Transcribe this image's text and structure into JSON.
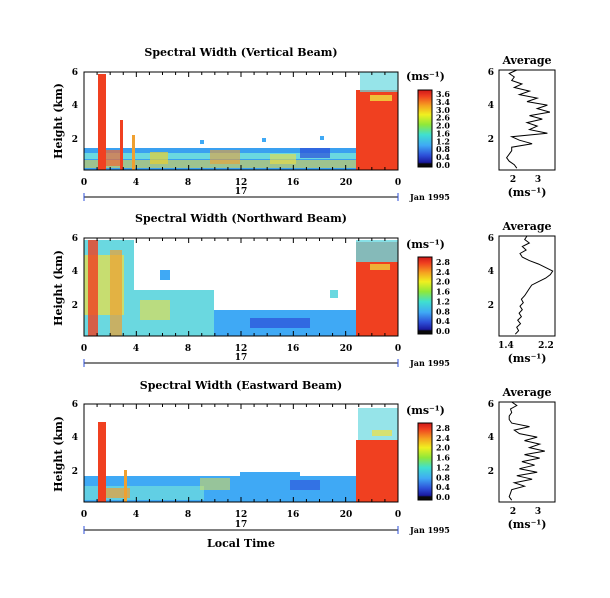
{
  "chart_data": [
    {
      "type": "heatmap",
      "title": "Spectral Width (Vertical Beam)",
      "ylabel": "Height (km)",
      "xlabel": "",
      "x_ticks": [
        "0",
        "4",
        "8",
        "12",
        "16",
        "20",
        "0"
      ],
      "y_ticks": [
        "2",
        "4",
        "6"
      ],
      "xlim": [
        0,
        24
      ],
      "ylim": [
        0.3,
        6
      ],
      "day_label": "17",
      "date_label": "Jan 1995",
      "colorbar": {
        "unit": "(ms⁻¹)",
        "ticks": [
          "3.6",
          "3.4",
          "3.0",
          "2.6",
          "2.0",
          "1.6",
          "1.2",
          "0.8",
          "0.4",
          "0.0"
        ]
      },
      "profile": {
        "title": "Average",
        "xlabel": "(ms⁻¹)",
        "x_ticks": [
          "2",
          "3"
        ],
        "y_ticks": [
          "2",
          "4",
          "6"
        ],
        "xlim": [
          1.4,
          3.6
        ],
        "heights": [
          0.4,
          0.6,
          0.8,
          1.0,
          1.2,
          1.4,
          1.6,
          1.8,
          2.0,
          2.2,
          2.4,
          2.6,
          2.8,
          3.0,
          3.2,
          3.4,
          3.6,
          3.8,
          4.0,
          4.2,
          4.4,
          4.6,
          4.8,
          5.0,
          5.2,
          5.4,
          5.6,
          5.8,
          6.0
        ],
        "values": [
          2.1,
          2.0,
          1.8,
          1.7,
          1.8,
          1.9,
          1.9,
          2.7,
          2.2,
          1.9,
          3.3,
          2.6,
          2.9,
          2.5,
          3.1,
          2.6,
          3.4,
          2.9,
          3.3,
          2.5,
          2.9,
          2.2,
          2.6,
          2.0,
          2.3,
          1.9,
          2.0,
          1.8,
          2.1
        ]
      }
    },
    {
      "type": "heatmap",
      "title": "Spectral Width (Northward Beam)",
      "ylabel": "Height (km)",
      "xlabel": "",
      "x_ticks": [
        "0",
        "4",
        "8",
        "12",
        "16",
        "20",
        "0"
      ],
      "y_ticks": [
        "2",
        "4",
        "6"
      ],
      "xlim": [
        0,
        24
      ],
      "ylim": [
        0.3,
        6
      ],
      "day_label": "17",
      "date_label": "Jan 1995",
      "colorbar": {
        "unit": "(ms⁻¹)",
        "ticks": [
          "2.8",
          "2.4",
          "2.0",
          "1.6",
          "1.2",
          "0.8",
          "0.4",
          "0.0"
        ]
      },
      "profile": {
        "title": "Average",
        "xlabel": "(ms⁻¹)",
        "x_ticks": [
          "1.4",
          "2.2"
        ],
        "y_ticks": [
          "2",
          "4",
          "6"
        ],
        "xlim": [
          1.2,
          2.4
        ],
        "heights": [
          0.4,
          0.6,
          0.8,
          1.0,
          1.2,
          1.4,
          1.6,
          1.8,
          2.0,
          2.2,
          2.4,
          2.6,
          2.8,
          3.0,
          3.2,
          3.4,
          3.6,
          3.8,
          4.0,
          4.2,
          4.4,
          4.6,
          4.8,
          5.0,
          5.2,
          5.4,
          5.6,
          5.8,
          6.0
        ],
        "values": [
          1.55,
          1.62,
          1.58,
          1.66,
          1.6,
          1.68,
          1.63,
          1.7,
          1.65,
          1.72,
          1.68,
          1.75,
          1.8,
          1.85,
          1.9,
          2.05,
          2.2,
          2.3,
          2.35,
          2.2,
          2.05,
          1.85,
          1.7,
          1.65,
          1.78,
          1.7,
          1.85,
          1.75,
          1.8
        ]
      }
    },
    {
      "type": "heatmap",
      "title": "Spectral Width (Eastward Beam)",
      "ylabel": "Height (km)",
      "xlabel": "Local Time",
      "x_ticks": [
        "0",
        "4",
        "8",
        "12",
        "16",
        "20",
        "0"
      ],
      "y_ticks": [
        "2",
        "4",
        "6"
      ],
      "xlim": [
        0,
        24
      ],
      "ylim": [
        0.3,
        6
      ],
      "day_label": "17",
      "date_label": "Jan 1995",
      "colorbar": {
        "unit": "(ms⁻¹)",
        "ticks": [
          "2.8",
          "2.4",
          "2.0",
          "1.6",
          "1.2",
          "0.8",
          "0.4",
          "0.0"
        ]
      },
      "profile": {
        "title": "Average",
        "xlabel": "(ms⁻¹)",
        "x_ticks": [
          "2",
          "3"
        ],
        "y_ticks": [
          "2",
          "4",
          "6"
        ],
        "xlim": [
          1.4,
          3.6
        ],
        "heights": [
          0.4,
          0.6,
          0.8,
          1.0,
          1.2,
          1.4,
          1.6,
          1.8,
          2.0,
          2.2,
          2.4,
          2.6,
          2.8,
          3.0,
          3.2,
          3.4,
          3.6,
          3.8,
          4.0,
          4.2,
          4.4,
          4.6,
          4.8,
          5.0,
          5.2,
          5.4,
          5.6,
          5.8,
          6.0
        ],
        "values": [
          1.9,
          1.8,
          1.85,
          1.9,
          2.4,
          2.0,
          2.7,
          2.1,
          2.9,
          2.2,
          2.8,
          2.3,
          3.0,
          2.4,
          3.2,
          2.6,
          3.0,
          2.4,
          2.9,
          2.2,
          2.0,
          2.6,
          1.9,
          1.8,
          1.8,
          1.9,
          1.85,
          2.1,
          1.9
        ]
      }
    }
  ]
}
